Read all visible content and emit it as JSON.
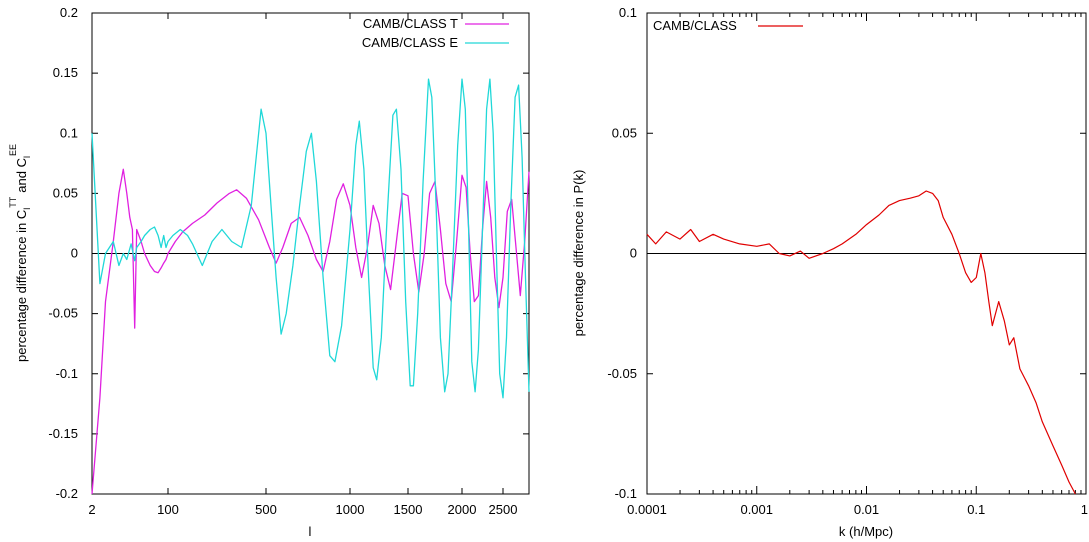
{
  "chart_data": [
    {
      "type": "line",
      "xlabel": "l",
      "ylabel_parts": {
        "lead": "percentage difference in C",
        "sub1": "l",
        "sup1": "TT",
        "mid": "and C",
        "sub2": "l",
        "sup2": "EE"
      },
      "x_scale": "nonlinear (log at low l, linear at high l)",
      "xticks": [
        {
          "value": 2,
          "label": "2"
        },
        {
          "value": 100,
          "label": "100"
        },
        {
          "value": 500,
          "label": "500"
        },
        {
          "value": 1000,
          "label": "1000"
        },
        {
          "value": 1500,
          "label": "1500"
        },
        {
          "value": 2000,
          "label": "2000"
        },
        {
          "value": 2500,
          "label": "2500"
        }
      ],
      "xlim": [
        2,
        2800
      ],
      "ylim": [
        -0.2,
        0.2
      ],
      "yticks": [
        {
          "value": 0.2,
          "label": "0.2"
        },
        {
          "value": 0.15,
          "label": "0.15"
        },
        {
          "value": 0.1,
          "label": "0.1"
        },
        {
          "value": 0.05,
          "label": "0.05"
        },
        {
          "value": 0,
          "label": "0"
        },
        {
          "value": -0.05,
          "label": "-0.05"
        },
        {
          "value": -0.1,
          "label": "-0.1"
        },
        {
          "value": -0.15,
          "label": "-0.15"
        },
        {
          "value": -0.2,
          "label": "-0.2"
        }
      ],
      "zero_line": true,
      "legend_position": "top-right",
      "series": [
        {
          "name": "CAMB/CLASS T",
          "color": "#e020e0",
          "points": [
            [
              2,
              -0.2
            ],
            [
              3,
              -0.12
            ],
            [
              4,
              -0.04
            ],
            [
              6,
              0.01
            ],
            [
              8,
              0.05
            ],
            [
              10,
              0.07
            ],
            [
              12,
              0.05
            ],
            [
              14,
              0.03
            ],
            [
              16,
              0.02
            ],
            [
              18,
              -0.062
            ],
            [
              20,
              0.02
            ],
            [
              25,
              0.01
            ],
            [
              30,
              0.0
            ],
            [
              40,
              -0.01
            ],
            [
              50,
              -0.015
            ],
            [
              60,
              -0.016
            ],
            [
              70,
              -0.012
            ],
            [
              80,
              -0.008
            ],
            [
              90,
              -0.005
            ],
            [
              100,
              0.0
            ],
            [
              130,
              0.01
            ],
            [
              160,
              0.018
            ],
            [
              200,
              0.025
            ],
            [
              250,
              0.032
            ],
            [
              300,
              0.042
            ],
            [
              350,
              0.05
            ],
            [
              380,
              0.053
            ],
            [
              420,
              0.046
            ],
            [
              470,
              0.028
            ],
            [
              520,
              0.005
            ],
            [
              560,
              -0.008
            ],
            [
              600,
              0.005
            ],
            [
              650,
              0.025
            ],
            [
              700,
              0.03
            ],
            [
              750,
              0.015
            ],
            [
              800,
              -0.005
            ],
            [
              840,
              -0.015
            ],
            [
              880,
              0.01
            ],
            [
              920,
              0.045
            ],
            [
              960,
              0.058
            ],
            [
              1000,
              0.04
            ],
            [
              1050,
              0.005
            ],
            [
              1100,
              -0.02
            ],
            [
              1150,
              0.005
            ],
            [
              1200,
              0.04
            ],
            [
              1250,
              0.025
            ],
            [
              1300,
              -0.01
            ],
            [
              1350,
              -0.03
            ],
            [
              1400,
              0.01
            ],
            [
              1450,
              0.05
            ],
            [
              1500,
              0.048
            ],
            [
              1550,
              0.0
            ],
            [
              1600,
              -0.032
            ],
            [
              1650,
              0.0
            ],
            [
              1700,
              0.05
            ],
            [
              1750,
              0.06
            ],
            [
              1800,
              0.02
            ],
            [
              1850,
              -0.025
            ],
            [
              1900,
              -0.04
            ],
            [
              1950,
              0.01
            ],
            [
              2000,
              0.065
            ],
            [
              2050,
              0.055
            ],
            [
              2100,
              0.0
            ],
            [
              2150,
              -0.04
            ],
            [
              2200,
              -0.035
            ],
            [
              2250,
              0.02
            ],
            [
              2300,
              0.06
            ],
            [
              2350,
              0.03
            ],
            [
              2400,
              -0.02
            ],
            [
              2450,
              -0.045
            ],
            [
              2500,
              -0.02
            ],
            [
              2550,
              0.035
            ],
            [
              2600,
              0.045
            ],
            [
              2650,
              0.005
            ],
            [
              2700,
              -0.035
            ],
            [
              2750,
              0.01
            ],
            [
              2800,
              0.068
            ]
          ]
        },
        {
          "name": "CAMB/CLASS E",
          "color": "#20d8d8",
          "points": [
            [
              2,
              0.1
            ],
            [
              3,
              -0.025
            ],
            [
              4,
              0.0
            ],
            [
              6,
              0.01
            ],
            [
              8,
              -0.01
            ],
            [
              10,
              0.0
            ],
            [
              12,
              -0.005
            ],
            [
              15,
              0.008
            ],
            [
              18,
              -0.006
            ],
            [
              20,
              0.005
            ],
            [
              25,
              0.01
            ],
            [
              30,
              0.015
            ],
            [
              40,
              0.02
            ],
            [
              50,
              0.022
            ],
            [
              60,
              0.015
            ],
            [
              70,
              0.005
            ],
            [
              80,
              0.015
            ],
            [
              90,
              0.005
            ],
            [
              100,
              0.01
            ],
            [
              120,
              0.015
            ],
            [
              150,
              0.02
            ],
            [
              180,
              0.015
            ],
            [
              200,
              0.008
            ],
            [
              240,
              -0.01
            ],
            [
              280,
              0.01
            ],
            [
              320,
              0.02
            ],
            [
              360,
              0.01
            ],
            [
              400,
              0.005
            ],
            [
              440,
              0.04
            ],
            [
              480,
              0.12
            ],
            [
              500,
              0.1
            ],
            [
              530,
              0.04
            ],
            [
              560,
              -0.02
            ],
            [
              590,
              -0.067
            ],
            [
              620,
              -0.05
            ],
            [
              660,
              -0.01
            ],
            [
              700,
              0.04
            ],
            [
              740,
              0.085
            ],
            [
              770,
              0.1
            ],
            [
              800,
              0.06
            ],
            [
              840,
              -0.02
            ],
            [
              880,
              -0.085
            ],
            [
              910,
              -0.09
            ],
            [
              950,
              -0.06
            ],
            [
              1000,
              0.02
            ],
            [
              1050,
              0.09
            ],
            [
              1080,
              0.11
            ],
            [
              1120,
              0.07
            ],
            [
              1160,
              -0.02
            ],
            [
              1200,
              -0.095
            ],
            [
              1230,
              -0.105
            ],
            [
              1270,
              -0.07
            ],
            [
              1320,
              0.03
            ],
            [
              1370,
              0.115
            ],
            [
              1400,
              0.12
            ],
            [
              1440,
              0.07
            ],
            [
              1480,
              -0.04
            ],
            [
              1520,
              -0.11
            ],
            [
              1550,
              -0.11
            ],
            [
              1590,
              -0.05
            ],
            [
              1640,
              0.06
            ],
            [
              1690,
              0.145
            ],
            [
              1720,
              0.13
            ],
            [
              1760,
              0.04
            ],
            [
              1800,
              -0.07
            ],
            [
              1840,
              -0.115
            ],
            [
              1870,
              -0.1
            ],
            [
              1910,
              -0.02
            ],
            [
              1960,
              0.09
            ],
            [
              2000,
              0.145
            ],
            [
              2040,
              0.12
            ],
            [
              2080,
              0.02
            ],
            [
              2120,
              -0.09
            ],
            [
              2160,
              -0.115
            ],
            [
              2200,
              -0.08
            ],
            [
              2250,
              0.02
            ],
            [
              2300,
              0.12
            ],
            [
              2340,
              0.145
            ],
            [
              2380,
              0.1
            ],
            [
              2420,
              0.0
            ],
            [
              2460,
              -0.1
            ],
            [
              2500,
              -0.12
            ],
            [
              2540,
              -0.07
            ],
            [
              2590,
              0.04
            ],
            [
              2640,
              0.13
            ],
            [
              2680,
              0.14
            ],
            [
              2720,
              0.08
            ],
            [
              2760,
              -0.02
            ],
            [
              2800,
              -0.115
            ]
          ]
        }
      ]
    },
    {
      "type": "line",
      "xlabel": "k   (h/Mpc)",
      "ylabel": "percentage difference in P(k)",
      "x_scale": "log",
      "xlim": [
        0.0001,
        1
      ],
      "xticks": [
        {
          "value": 0.0001,
          "label": "0.0001"
        },
        {
          "value": 0.001,
          "label": "0.001"
        },
        {
          "value": 0.01,
          "label": "0.01"
        },
        {
          "value": 0.1,
          "label": "0.1"
        },
        {
          "value": 1,
          "label": "1"
        }
      ],
      "ylim": [
        -0.1,
        0.1
      ],
      "yticks": [
        {
          "value": 0.1,
          "label": "0.1"
        },
        {
          "value": 0.05,
          "label": "0.05"
        },
        {
          "value": 0,
          "label": "0"
        },
        {
          "value": -0.05,
          "label": "-0.05"
        },
        {
          "value": -0.1,
          "label": "-0.1"
        }
      ],
      "zero_line": true,
      "legend_position": "top-left",
      "series": [
        {
          "name": "CAMB/CLASS",
          "color": "#e00000",
          "points": [
            [
              0.0001,
              0.008
            ],
            [
              0.00012,
              0.004
            ],
            [
              0.00015,
              0.009
            ],
            [
              0.0002,
              0.006
            ],
            [
              0.00025,
              0.01
            ],
            [
              0.0003,
              0.005
            ],
            [
              0.0004,
              0.008
            ],
            [
              0.0005,
              0.006
            ],
            [
              0.0007,
              0.004
            ],
            [
              0.001,
              0.003
            ],
            [
              0.0013,
              0.004
            ],
            [
              0.0016,
              0.0
            ],
            [
              0.002,
              -0.001
            ],
            [
              0.0025,
              0.001
            ],
            [
              0.003,
              -0.002
            ],
            [
              0.004,
              0.0
            ],
            [
              0.005,
              0.002
            ],
            [
              0.006,
              0.004
            ],
            [
              0.008,
              0.008
            ],
            [
              0.01,
              0.012
            ],
            [
              0.013,
              0.016
            ],
            [
              0.016,
              0.02
            ],
            [
              0.02,
              0.022
            ],
            [
              0.025,
              0.023
            ],
            [
              0.03,
              0.024
            ],
            [
              0.035,
              0.026
            ],
            [
              0.04,
              0.025
            ],
            [
              0.045,
              0.022
            ],
            [
              0.05,
              0.015
            ],
            [
              0.06,
              0.008
            ],
            [
              0.07,
              0.0
            ],
            [
              0.08,
              -0.008
            ],
            [
              0.09,
              -0.012
            ],
            [
              0.1,
              -0.01
            ],
            [
              0.11,
              0.0
            ],
            [
              0.12,
              -0.008
            ],
            [
              0.13,
              -0.02
            ],
            [
              0.14,
              -0.03
            ],
            [
              0.16,
              -0.02
            ],
            [
              0.18,
              -0.028
            ],
            [
              0.2,
              -0.038
            ],
            [
              0.22,
              -0.035
            ],
            [
              0.25,
              -0.048
            ],
            [
              0.3,
              -0.055
            ],
            [
              0.35,
              -0.062
            ],
            [
              0.4,
              -0.07
            ],
            [
              0.5,
              -0.08
            ],
            [
              0.6,
              -0.088
            ],
            [
              0.7,
              -0.095
            ],
            [
              0.8,
              -0.1
            ]
          ]
        }
      ]
    }
  ]
}
